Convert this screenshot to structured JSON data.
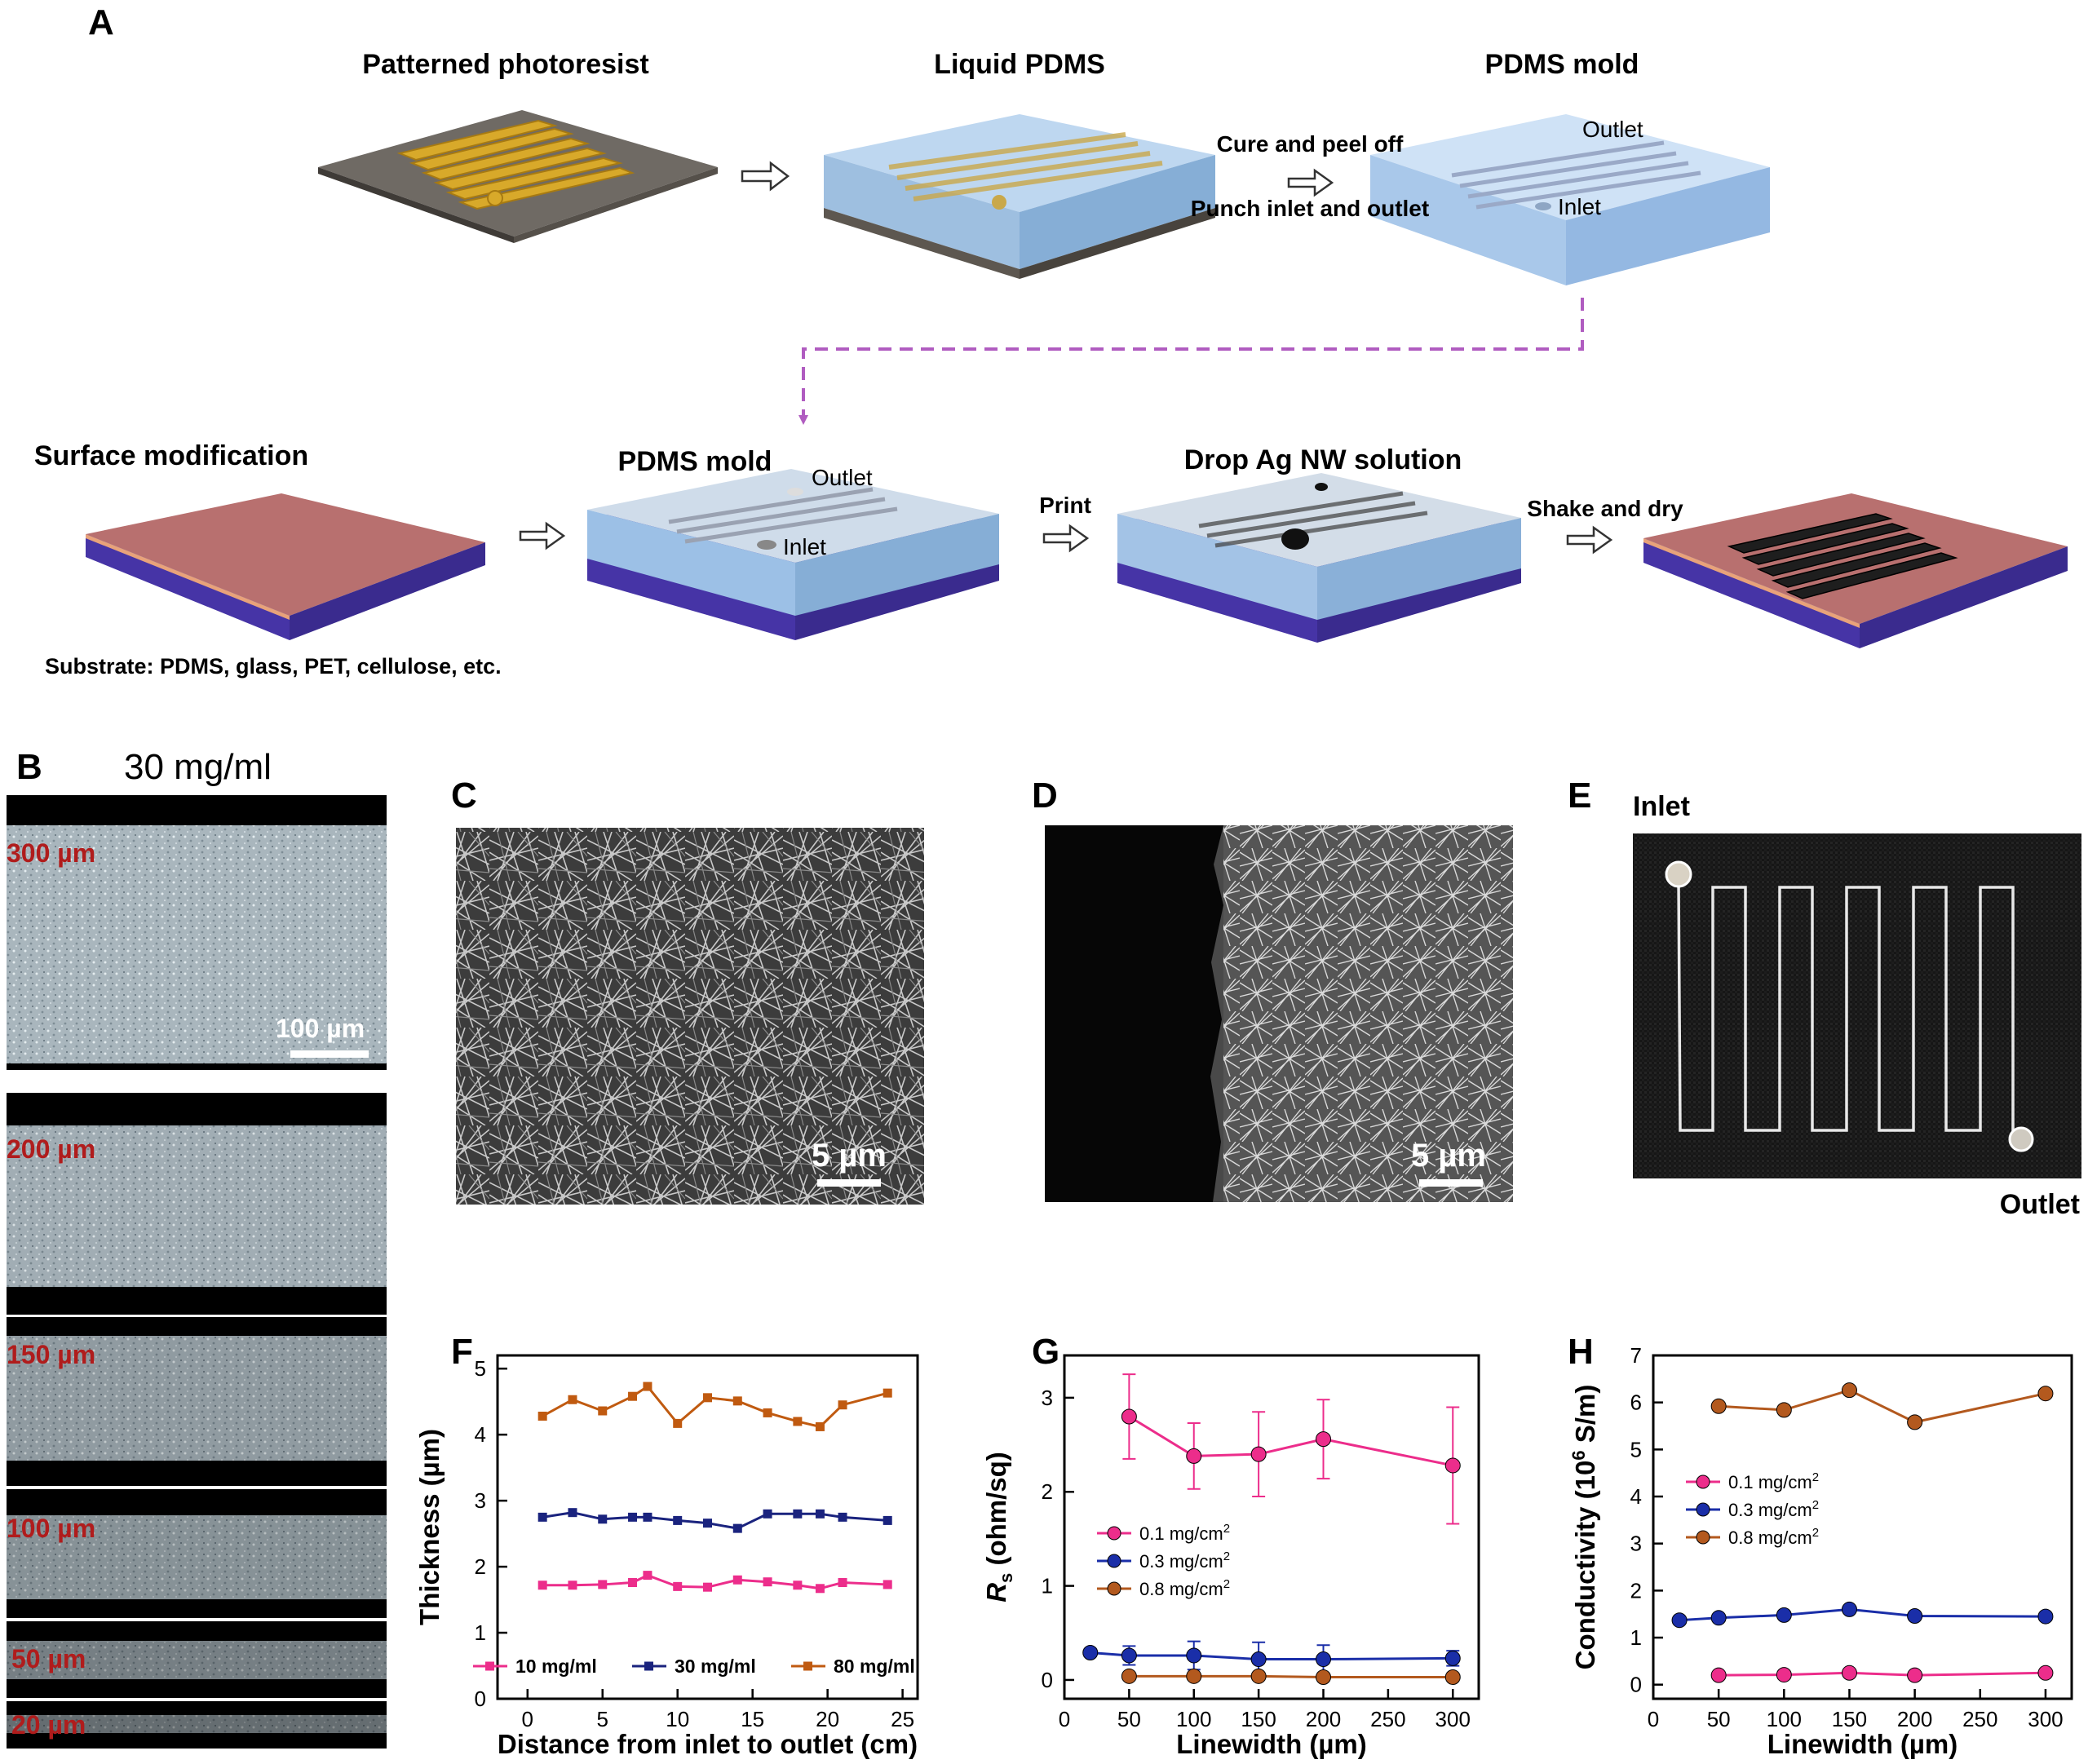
{
  "panel_labels": {
    "A": "A",
    "B": "B",
    "C": "C",
    "D": "D",
    "E": "E",
    "F": "F",
    "G": "G",
    "H": "H"
  },
  "panel_a": {
    "step_titles": {
      "patterned_photoresist": "Patterned photoresist",
      "liquid_pdms": "Liquid PDMS",
      "pdms_mold_top": "PDMS mold",
      "surface_modification": "Surface modification",
      "pdms_mold_bottom": "PDMS mold",
      "drop_ag_nw": "Drop Ag NW solution"
    },
    "arrow_labels": {
      "cure_peel": "Cure and peel off",
      "punch": "Punch inlet and outlet",
      "print": "Print",
      "shake_dry": "Shake and dry"
    },
    "mold_labels": {
      "outlet": "Outlet",
      "inlet": "Inlet"
    },
    "substrate_note": "Substrate: PDMS, glass, PET, cellulose, etc.",
    "colors": {
      "photoresist": "#d8a92a",
      "pdms": "#b7d3ee",
      "substrate_top": "#b8706f",
      "substrate_base": "#4634a6",
      "dashed_arrow": "#b05cc0"
    }
  },
  "panel_b": {
    "concentration": "30 mg/ml",
    "linewidths": [
      "300 µm",
      "200 µm",
      "150 µm",
      "100 µm",
      "50 µm",
      "20 µm"
    ],
    "scale_bar": "100 µm",
    "label_color": "#b01c1c"
  },
  "panel_c": {
    "scale_bar": "5 µm"
  },
  "panel_d": {
    "scale_bar": "5 µm"
  },
  "panel_e": {
    "inlet": "Inlet",
    "outlet": "Outlet"
  },
  "chart_data": [
    {
      "panel": "F",
      "type": "line",
      "xlabel": "Distance from inlet to outlet (cm)",
      "ylabel": "Thickness (µm)",
      "xlim": [
        -2,
        26
      ],
      "ylim": [
        0,
        5.2
      ],
      "xticks": [
        0,
        5,
        10,
        15,
        20,
        25
      ],
      "yticks": [
        0,
        1,
        2,
        3,
        4,
        5
      ],
      "legend_placement": "bottom",
      "series": [
        {
          "name": "10 mg/ml",
          "color": "#ec2d8b",
          "x": [
            1,
            3,
            5,
            7,
            8,
            10,
            12,
            14,
            16,
            18,
            19.5,
            21,
            24
          ],
          "y": [
            1.72,
            1.72,
            1.73,
            1.76,
            1.87,
            1.7,
            1.69,
            1.8,
            1.77,
            1.72,
            1.67,
            1.76,
            1.73
          ]
        },
        {
          "name": "30 mg/ml",
          "color": "#1a237e",
          "x": [
            1,
            3,
            5,
            7,
            8,
            10,
            12,
            14,
            16,
            18,
            19.5,
            21,
            24
          ],
          "y": [
            2.75,
            2.82,
            2.72,
            2.75,
            2.75,
            2.7,
            2.66,
            2.58,
            2.8,
            2.8,
            2.8,
            2.75,
            2.7
          ]
        },
        {
          "name": "80 mg/ml",
          "color": "#c05a10",
          "x": [
            1,
            3,
            5,
            7,
            8,
            10,
            12,
            14,
            16,
            18,
            19.5,
            21,
            24
          ],
          "y": [
            4.28,
            4.53,
            4.36,
            4.58,
            4.73,
            4.17,
            4.56,
            4.51,
            4.33,
            4.2,
            4.12,
            4.45,
            4.63
          ]
        }
      ]
    },
    {
      "panel": "G",
      "type": "line",
      "xlabel": "Linewidth (µm)",
      "ylabel": "R_s (ohm/sq)",
      "ylabel_main": "R",
      "ylabel_sub": "s",
      "ylabel_rest": " (ohm/sq)",
      "xlim": [
        0,
        320
      ],
      "ylim": [
        -0.2,
        3.45
      ],
      "xticks": [
        0,
        50,
        100,
        150,
        200,
        250,
        300
      ],
      "yticks": [
        0,
        1,
        2,
        3
      ],
      "legend_placement": "center-left",
      "series": [
        {
          "name": "0.1 mg/cm²",
          "name_base": "0.1 mg/cm",
          "name_sup": "2",
          "color": "#ec2d8b",
          "x": [
            50,
            100,
            150,
            200,
            300
          ],
          "y": [
            2.8,
            2.38,
            2.4,
            2.56,
            2.28
          ],
          "err": [
            0.45,
            0.35,
            0.45,
            0.42,
            0.62
          ]
        },
        {
          "name": "0.3 mg/cm²",
          "name_base": "0.3 mg/cm",
          "name_sup": "2",
          "color": "#1a2ea8",
          "x": [
            20,
            50,
            100,
            150,
            200,
            300
          ],
          "y": [
            0.29,
            0.26,
            0.26,
            0.22,
            0.22,
            0.23
          ],
          "err": [
            0.04,
            0.1,
            0.15,
            0.18,
            0.15,
            0.08
          ]
        },
        {
          "name": "0.8 mg/cm²",
          "name_base": "0.8 mg/cm",
          "name_sup": "2",
          "color": "#b3591e",
          "x": [
            50,
            100,
            150,
            200,
            300
          ],
          "y": [
            0.04,
            0.04,
            0.04,
            0.03,
            0.03
          ],
          "err": [
            0,
            0,
            0,
            0,
            0
          ]
        }
      ]
    },
    {
      "panel": "H",
      "type": "line",
      "xlabel": "Linewidth (µm)",
      "ylabel": "Conductivity (10⁶ S/m)",
      "ylabel_main": "Conductivity (10",
      "ylabel_sup": "6",
      "ylabel_rest": " S/m)",
      "xlim": [
        0,
        320
      ],
      "ylim": [
        -0.3,
        7
      ],
      "xticks": [
        0,
        50,
        100,
        150,
        200,
        250,
        300
      ],
      "yticks": [
        0,
        1,
        2,
        3,
        4,
        5,
        6,
        7
      ],
      "legend_placement": "center-left",
      "series": [
        {
          "name": "0.1 mg/cm²",
          "name_base": "0.1 mg/cm",
          "name_sup": "2",
          "color": "#ec2d8b",
          "x": [
            50,
            100,
            150,
            200,
            300
          ],
          "y": [
            0.2,
            0.21,
            0.25,
            0.2,
            0.25
          ]
        },
        {
          "name": "0.3 mg/cm²",
          "name_base": "0.3 mg/cm",
          "name_sup": "2",
          "color": "#1a2ea8",
          "x": [
            20,
            50,
            100,
            150,
            200,
            300
          ],
          "y": [
            1.37,
            1.42,
            1.48,
            1.6,
            1.46,
            1.45
          ]
        },
        {
          "name": "0.8 mg/cm²",
          "name_base": "0.8 mg/cm",
          "name_sup": "2",
          "color": "#b3591e",
          "x": [
            50,
            100,
            150,
            200,
            300
          ],
          "y": [
            5.92,
            5.84,
            6.26,
            5.58,
            6.19
          ]
        }
      ]
    }
  ]
}
